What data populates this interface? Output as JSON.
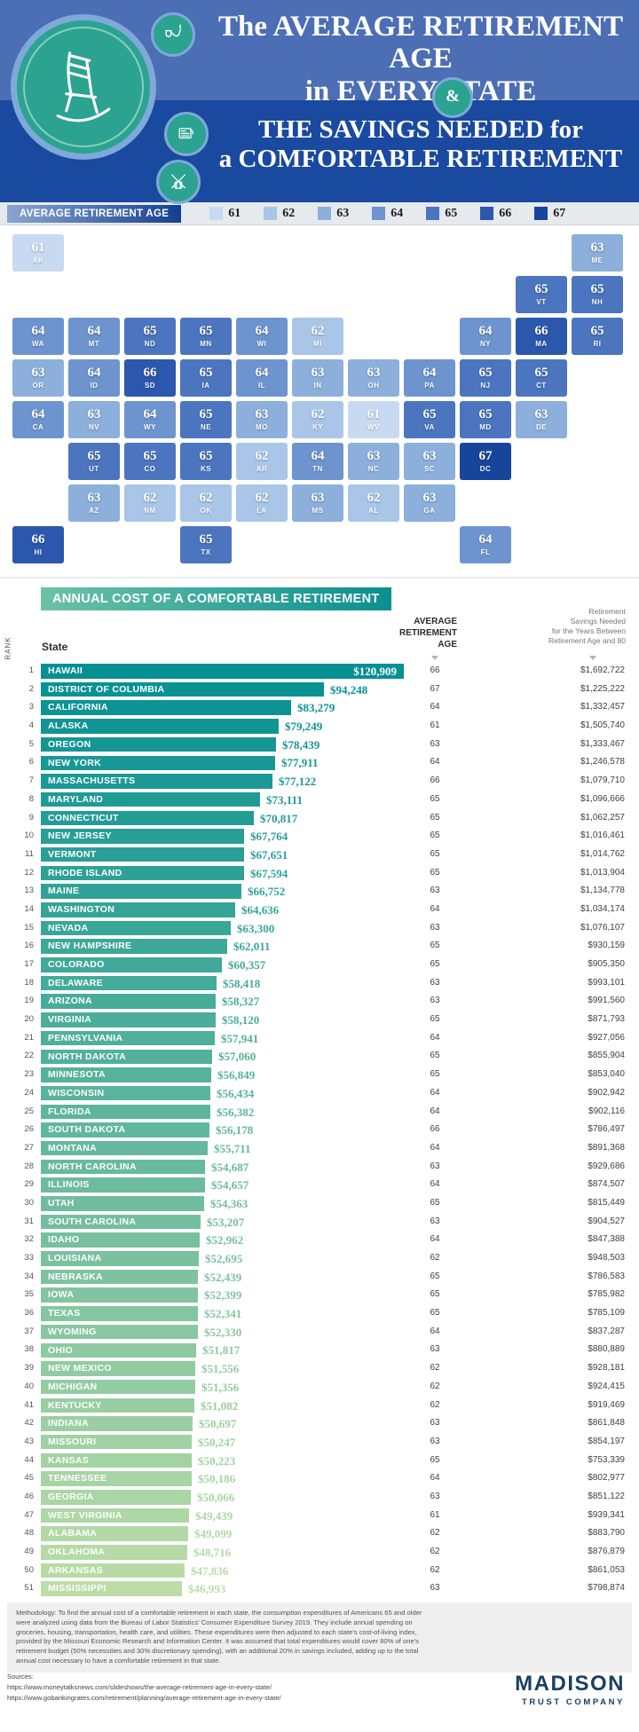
{
  "header": {
    "title_top_line1": "The AVERAGE RETIREMENT AGE",
    "title_top_line2": "in EVERY STATE",
    "ampersand": "&",
    "title_bottom_line1": "THE SAVINGS NEEDED for",
    "title_bottom_line2": "a COMFORTABLE RETIREMENT"
  },
  "legend": {
    "label": "AVERAGE RETIREMENT AGE",
    "items": [
      {
        "age": "61",
        "color": "#c7daf1"
      },
      {
        "age": "62",
        "color": "#a9c5e8"
      },
      {
        "age": "63",
        "color": "#8cafdc"
      },
      {
        "age": "64",
        "color": "#6d94cf"
      },
      {
        "age": "65",
        "color": "#4b75bf"
      },
      {
        "age": "66",
        "color": "#2b57ac"
      },
      {
        "age": "67",
        "color": "#16459c"
      }
    ]
  },
  "chart_data": [
    {
      "type": "heatmap",
      "title": "The Average Retirement Age in Every State",
      "legend_title": "AVERAGE RETIREMENT AGE",
      "legend_values": [
        61,
        62,
        63,
        64,
        65,
        66,
        67
      ],
      "states": [
        {
          "abbr": "AK",
          "age": 61,
          "col": 0,
          "row": 0
        },
        {
          "abbr": "ME",
          "age": 63,
          "col": 10,
          "row": 0
        },
        {
          "abbr": "VT",
          "age": 65,
          "col": 9,
          "row": 1
        },
        {
          "abbr": "NH",
          "age": 65,
          "col": 10,
          "row": 1
        },
        {
          "abbr": "WA",
          "age": 64,
          "col": 0,
          "row": 2
        },
        {
          "abbr": "MT",
          "age": 64,
          "col": 1,
          "row": 2
        },
        {
          "abbr": "ND",
          "age": 65,
          "col": 2,
          "row": 2
        },
        {
          "abbr": "MN",
          "age": 65,
          "col": 3,
          "row": 2
        },
        {
          "abbr": "WI",
          "age": 64,
          "col": 4,
          "row": 2
        },
        {
          "abbr": "MI",
          "age": 62,
          "col": 5,
          "row": 2
        },
        {
          "abbr": "NY",
          "age": 64,
          "col": 8,
          "row": 2
        },
        {
          "abbr": "MA",
          "age": 66,
          "col": 9,
          "row": 2
        },
        {
          "abbr": "RI",
          "age": 65,
          "col": 10,
          "row": 2
        },
        {
          "abbr": "OR",
          "age": 63,
          "col": 0,
          "row": 3
        },
        {
          "abbr": "ID",
          "age": 64,
          "col": 1,
          "row": 3
        },
        {
          "abbr": "SD",
          "age": 66,
          "col": 2,
          "row": 3
        },
        {
          "abbr": "IA",
          "age": 65,
          "col": 3,
          "row": 3
        },
        {
          "abbr": "IL",
          "age": 64,
          "col": 4,
          "row": 3
        },
        {
          "abbr": "IN",
          "age": 63,
          "col": 5,
          "row": 3
        },
        {
          "abbr": "OH",
          "age": 63,
          "col": 6,
          "row": 3
        },
        {
          "abbr": "PA",
          "age": 64,
          "col": 7,
          "row": 3
        },
        {
          "abbr": "NJ",
          "age": 65,
          "col": 8,
          "row": 3
        },
        {
          "abbr": "CT",
          "age": 65,
          "col": 9,
          "row": 3
        },
        {
          "abbr": "CA",
          "age": 64,
          "col": 0,
          "row": 4
        },
        {
          "abbr": "NV",
          "age": 63,
          "col": 1,
          "row": 4
        },
        {
          "abbr": "WY",
          "age": 64,
          "col": 2,
          "row": 4
        },
        {
          "abbr": "NE",
          "age": 65,
          "col": 3,
          "row": 4
        },
        {
          "abbr": "MO",
          "age": 63,
          "col": 4,
          "row": 4
        },
        {
          "abbr": "KY",
          "age": 62,
          "col": 5,
          "row": 4
        },
        {
          "abbr": "WV",
          "age": 61,
          "col": 6,
          "row": 4
        },
        {
          "abbr": "VA",
          "age": 65,
          "col": 7,
          "row": 4
        },
        {
          "abbr": "MD",
          "age": 65,
          "col": 8,
          "row": 4
        },
        {
          "abbr": "DE",
          "age": 63,
          "col": 9,
          "row": 4
        },
        {
          "abbr": "UT",
          "age": 65,
          "col": 1,
          "row": 5
        },
        {
          "abbr": "CO",
          "age": 65,
          "col": 2,
          "row": 5
        },
        {
          "abbr": "KS",
          "age": 65,
          "col": 3,
          "row": 5
        },
        {
          "abbr": "AR",
          "age": 62,
          "col": 4,
          "row": 5
        },
        {
          "abbr": "TN",
          "age": 64,
          "col": 5,
          "row": 5
        },
        {
          "abbr": "NC",
          "age": 63,
          "col": 6,
          "row": 5
        },
        {
          "abbr": "SC",
          "age": 63,
          "col": 7,
          "row": 5
        },
        {
          "abbr": "DC",
          "age": 67,
          "col": 8,
          "row": 5
        },
        {
          "abbr": "AZ",
          "age": 63,
          "col": 1,
          "row": 6
        },
        {
          "abbr": "NM",
          "age": 62,
          "col": 2,
          "row": 6
        },
        {
          "abbr": "OK",
          "age": 62,
          "col": 3,
          "row": 6
        },
        {
          "abbr": "LA",
          "age": 62,
          "col": 4,
          "row": 6
        },
        {
          "abbr": "MS",
          "age": 63,
          "col": 5,
          "row": 6
        },
        {
          "abbr": "AL",
          "age": 62,
          "col": 6,
          "row": 6
        },
        {
          "abbr": "GA",
          "age": 63,
          "col": 7,
          "row": 6
        },
        {
          "abbr": "HI",
          "age": 66,
          "col": 0,
          "row": 7
        },
        {
          "abbr": "TX",
          "age": 65,
          "col": 3,
          "row": 7
        },
        {
          "abbr": "FL",
          "age": 64,
          "col": 8,
          "row": 7
        }
      ]
    },
    {
      "type": "bar",
      "orientation": "horizontal",
      "title": "ANNUAL COST OF A COMFORTABLE RETIREMENT",
      "xlim": [
        0,
        120909
      ],
      "rank_header": "RANK",
      "state_header": "State",
      "age_header_lines": [
        "AVERAGE",
        "RETIREMENT",
        "AGE"
      ],
      "savings_header_lines": [
        "Retirement",
        "Savings Needed",
        "for the Years Between",
        "Retirement Age and 80"
      ],
      "max_cost": 120909,
      "bar_color_start": "#069093",
      "bar_color_end": "#bcdda6",
      "rows": [
        {
          "rank": 1,
          "state": "HAWAII",
          "cost": "$120,909",
          "value": 120909,
          "age": 66,
          "savings": "$1,692,722"
        },
        {
          "rank": 2,
          "state": "DISTRICT OF COLUMBIA",
          "cost": "$94,248",
          "value": 94248,
          "age": 67,
          "savings": "$1,225,222"
        },
        {
          "rank": 3,
          "state": "CALIFORNIA",
          "cost": "$83,279",
          "value": 83279,
          "age": 64,
          "savings": "$1,332,457"
        },
        {
          "rank": 4,
          "state": "ALASKA",
          "cost": "$79,249",
          "value": 79249,
          "age": 61,
          "savings": "$1,505,740"
        },
        {
          "rank": 5,
          "state": "OREGON",
          "cost": "$78,439",
          "value": 78439,
          "age": 63,
          "savings": "$1,333,467"
        },
        {
          "rank": 6,
          "state": "NEW YORK",
          "cost": "$77,911",
          "value": 77911,
          "age": 64,
          "savings": "$1,246,578"
        },
        {
          "rank": 7,
          "state": "MASSACHUSETTS",
          "cost": "$77,122",
          "value": 77122,
          "age": 66,
          "savings": "$1,079,710"
        },
        {
          "rank": 8,
          "state": "MARYLAND",
          "cost": "$73,111",
          "value": 73111,
          "age": 65,
          "savings": "$1,096,666"
        },
        {
          "rank": 9,
          "state": "CONNECTICUT",
          "cost": "$70,817",
          "value": 70817,
          "age": 65,
          "savings": "$1,062,257"
        },
        {
          "rank": 10,
          "state": "NEW JERSEY",
          "cost": "$67,764",
          "value": 67764,
          "age": 65,
          "savings": "$1,016,461"
        },
        {
          "rank": 11,
          "state": "VERMONT",
          "cost": "$67,651",
          "value": 67651,
          "age": 65,
          "savings": "$1,014,762"
        },
        {
          "rank": 12,
          "state": "RHODE ISLAND",
          "cost": "$67,594",
          "value": 67594,
          "age": 65,
          "savings": "$1,013,904"
        },
        {
          "rank": 13,
          "state": "MAINE",
          "cost": "$66,752",
          "value": 66752,
          "age": 63,
          "savings": "$1,134,778"
        },
        {
          "rank": 14,
          "state": "WASHINGTON",
          "cost": "$64,636",
          "value": 64636,
          "age": 64,
          "savings": "$1,034,174"
        },
        {
          "rank": 15,
          "state": "NEVADA",
          "cost": "$63,300",
          "value": 63300,
          "age": 63,
          "savings": "$1,076,107"
        },
        {
          "rank": 16,
          "state": "NEW HAMPSHIRE",
          "cost": "$62,011",
          "value": 62011,
          "age": 65,
          "savings": "$930,159"
        },
        {
          "rank": 17,
          "state": "COLORADO",
          "cost": "$60,357",
          "value": 60357,
          "age": 65,
          "savings": "$905,350"
        },
        {
          "rank": 18,
          "state": "DELAWARE",
          "cost": "$58,418",
          "value": 58418,
          "age": 63,
          "savings": "$993,101"
        },
        {
          "rank": 19,
          "state": "ARIZONA",
          "cost": "$58,327",
          "value": 58327,
          "age": 63,
          "savings": "$991,560"
        },
        {
          "rank": 20,
          "state": "VIRGINIA",
          "cost": "$58,120",
          "value": 58120,
          "age": 65,
          "savings": "$871,793"
        },
        {
          "rank": 21,
          "state": "PENNSYLVANIA",
          "cost": "$57,941",
          "value": 57941,
          "age": 64,
          "savings": "$927,056"
        },
        {
          "rank": 22,
          "state": "NORTH DAKOTA",
          "cost": "$57,060",
          "value": 57060,
          "age": 65,
          "savings": "$855,904"
        },
        {
          "rank": 23,
          "state": "MINNESOTA",
          "cost": "$56,849",
          "value": 56849,
          "age": 65,
          "savings": "$853,040"
        },
        {
          "rank": 24,
          "state": "WISCONSIN",
          "cost": "$56,434",
          "value": 56434,
          "age": 64,
          "savings": "$902,942"
        },
        {
          "rank": 25,
          "state": "FLORIDA",
          "cost": "$56,382",
          "value": 56382,
          "age": 64,
          "savings": "$902,116"
        },
        {
          "rank": 26,
          "state": "SOUTH DAKOTA",
          "cost": "$56,178",
          "value": 56178,
          "age": 66,
          "savings": "$786,497"
        },
        {
          "rank": 27,
          "state": "MONTANA",
          "cost": "$55,711",
          "value": 55711,
          "age": 64,
          "savings": "$891,368"
        },
        {
          "rank": 28,
          "state": "NORTH CAROLINA",
          "cost": "$54,687",
          "value": 54687,
          "age": 63,
          "savings": "$929,686"
        },
        {
          "rank": 29,
          "state": "ILLINOIS",
          "cost": "$54,657",
          "value": 54657,
          "age": 64,
          "savings": "$874,507"
        },
        {
          "rank": 30,
          "state": "UTAH",
          "cost": "$54,363",
          "value": 54363,
          "age": 65,
          "savings": "$815,449"
        },
        {
          "rank": 31,
          "state": "SOUTH CAROLINA",
          "cost": "$53,207",
          "value": 53207,
          "age": 63,
          "savings": "$904,527"
        },
        {
          "rank": 32,
          "state": "IDAHO",
          "cost": "$52,962",
          "value": 52962,
          "age": 64,
          "savings": "$847,388"
        },
        {
          "rank": 33,
          "state": "LOUISIANA",
          "cost": "$52,695",
          "value": 52695,
          "age": 62,
          "savings": "$948,503"
        },
        {
          "rank": 34,
          "state": "NEBRASKA",
          "cost": "$52,439",
          "value": 52439,
          "age": 65,
          "savings": "$786,583"
        },
        {
          "rank": 35,
          "state": "IOWA",
          "cost": "$52,399",
          "value": 52399,
          "age": 65,
          "savings": "$785,982"
        },
        {
          "rank": 36,
          "state": "TEXAS",
          "cost": "$52,341",
          "value": 52341,
          "age": 65,
          "savings": "$785,109"
        },
        {
          "rank": 37,
          "state": "WYOMING",
          "cost": "$52,330",
          "value": 52330,
          "age": 64,
          "savings": "$837,287"
        },
        {
          "rank": 38,
          "state": "OHIO",
          "cost": "$51,817",
          "value": 51817,
          "age": 63,
          "savings": "$880,889"
        },
        {
          "rank": 39,
          "state": "NEW MEXICO",
          "cost": "$51,556",
          "value": 51556,
          "age": 62,
          "savings": "$928,181"
        },
        {
          "rank": 40,
          "state": "MICHIGAN",
          "cost": "$51,356",
          "value": 51356,
          "age": 62,
          "savings": "$924,415"
        },
        {
          "rank": 41,
          "state": "KENTUCKY",
          "cost": "$51,082",
          "value": 51082,
          "age": 62,
          "savings": "$919,469"
        },
        {
          "rank": 42,
          "state": "INDIANA",
          "cost": "$50,697",
          "value": 50697,
          "age": 63,
          "savings": "$861,848"
        },
        {
          "rank": 43,
          "state": "MISSOURI",
          "cost": "$50,247",
          "value": 50247,
          "age": 63,
          "savings": "$854,197"
        },
        {
          "rank": 44,
          "state": "KANSAS",
          "cost": "$50,223",
          "value": 50223,
          "age": 65,
          "savings": "$753,339"
        },
        {
          "rank": 45,
          "state": "TENNESSEE",
          "cost": "$50,186",
          "value": 50186,
          "age": 64,
          "savings": "$802,977"
        },
        {
          "rank": 46,
          "state": "GEORGIA",
          "cost": "$50,066",
          "value": 50066,
          "age": 63,
          "savings": "$851,122"
        },
        {
          "rank": 47,
          "state": "WEST VIRGINIA",
          "cost": "$49,439",
          "value": 49439,
          "age": 61,
          "savings": "$939,341"
        },
        {
          "rank": 48,
          "state": "ALABAMA",
          "cost": "$49,099",
          "value": 49099,
          "age": 62,
          "savings": "$883,790"
        },
        {
          "rank": 49,
          "state": "OKLAHOMA",
          "cost": "$48,716",
          "value": 48716,
          "age": 62,
          "savings": "$876,879"
        },
        {
          "rank": 50,
          "state": "ARKANSAS",
          "cost": "$47,836",
          "value": 47836,
          "age": 62,
          "savings": "$861,053"
        },
        {
          "rank": 51,
          "state": "MISSISSIPPI",
          "cost": "$46,993",
          "value": 46993,
          "age": 63,
          "savings": "$798,874"
        }
      ]
    }
  ],
  "footer": {
    "methodology": "Methodology: To find the annual cost of a comfortable retirement in each state, the consumption expenditures of Americans 65 and older were analyzed using data from the Bureau of Labor Statistics' Consumer Expenditure Survey 2019. They include annual spending on groceries, housing, transportation, health care, and utilities. These expenditures were then adjusted to each state's cost-of-living index, provided by the Missouri Economic Research and Information Center. It was assumed that total expenditures would cover 80% of one's retirement budget (50% necessities and 30% discretionary spending), with an additional 20% in savings included, adding up to the total annual cost necessary to have a comfortable retirement in that state.",
    "sources_label": "Sources:",
    "sources": [
      "https://www.moneytalksnews.com/slideshows/the-average-retirement-age-in-every-state/",
      "https://www.gobankingrates.com/retirement/planning/average-retirement-age-in-every-state/"
    ],
    "logo_name": "MADISON",
    "logo_sub": "TRUST COMPANY"
  }
}
